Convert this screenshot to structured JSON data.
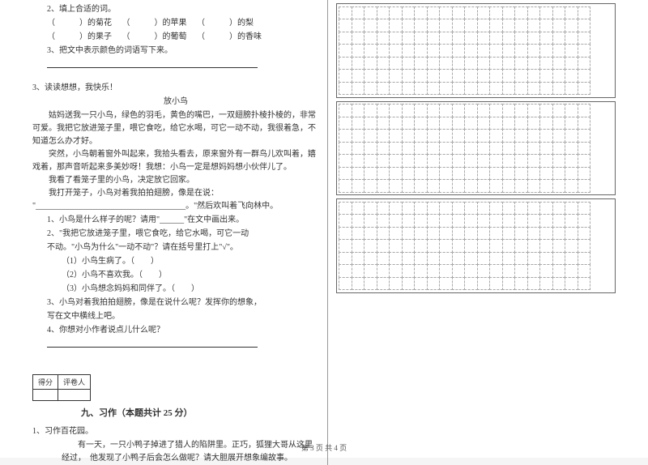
{
  "q2": {
    "intro": "2、填上合适的词。",
    "row1a": "（　　　）的菊花",
    "row1b": "（　　　）的苹果",
    "row1c": "（　　　）的梨",
    "row2a": "（　　　）的果子",
    "row2b": "（　　　）的葡萄",
    "row2c": "（　　　）的香味",
    "q3": "3、把文中表示颜色的词语写下来。"
  },
  "reading": {
    "head": "3、读读想想，我快乐！",
    "title": "放小鸟",
    "p1": "姑妈送我一只小鸟，绿色的羽毛，黄色的嘴巴，一双翅膀扑棱扑棱的，非常可爱。我把它放进笼子里，喂它食吃，给它水喝，可它一动不动，我很着急，不知道怎么办才好。",
    "p2": "突然，小鸟朝着窗外叫起来，我拾头看去，原来窗外有一群鸟儿欢叫着，嬉戏着，那声音听起来多美妙呀！我想：小鸟一定是想妈妈想小伙伴儿了。",
    "p3": "我看了看笼子里的小鸟，决定放它回家。",
    "p4a": "我打开笼子，小鸟对着我拍拍翅膀，像是在说：",
    "p4b": "\"_____________________________________。\"然后欢叫着飞向林中。",
    "sub1": "1、小鸟是什么样子的呢？请用\"______\"在文中画出来。",
    "sub2a": "2、\"我把它放进笼子里，喂它食吃，给它水喝，可它一动",
    "sub2b": "不动。\"小鸟为什么\"一动不动\"？请在括号里打上\"√\"。",
    "opt1": "（1）小鸟生病了。（　　）",
    "opt2": "（2）小鸟不喜欢我。（　　）",
    "opt3": "（3）小鸟想念妈妈和同伴了。（　　）",
    "sub3a": "3、小鸟对着我拍拍翅膀，像是在说什么呢？发挥你的想象，",
    "sub3b": "写在文中横线上吧。",
    "sub4": "4、你想对小作者说点儿什么呢？"
  },
  "score": {
    "col1": "得分",
    "col2": "评卷人"
  },
  "section9": "九、习作（本题共计 25 分）",
  "essay": {
    "head": "1、习作百花园。",
    "body": "有一天，一只小鸭子掉进了猎人的陷阱里。正巧，狐狸大哥从这里经过，　他发现了小鸭子后会怎么做呢？请大胆展开想象编故事。"
  },
  "footer": "第 3 页  共 4 页",
  "grid": {
    "rows": 7,
    "cols": 20,
    "blocks": 3
  }
}
